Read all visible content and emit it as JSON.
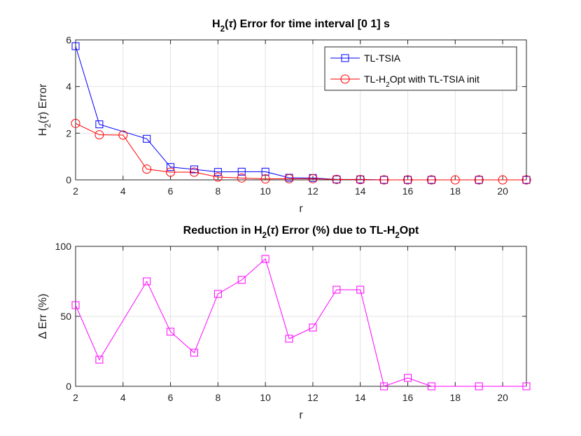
{
  "chart_data": [
    {
      "type": "line",
      "title": "H2(τ) Error for time interval [0 1] s",
      "xlabel": "r",
      "ylabel": "H2(τ) Error",
      "xlim": [
        2,
        21
      ],
      "ylim": [
        0,
        6
      ],
      "xticks": [
        2,
        4,
        6,
        8,
        10,
        12,
        14,
        16,
        18,
        20
      ],
      "yticks": [
        0,
        2,
        4,
        6
      ],
      "grid": true,
      "legend_position": "top-right",
      "series": [
        {
          "name": "TL-TSIA",
          "color": "#0000ff",
          "marker": "square",
          "x": [
            2,
            3,
            5,
            6,
            7,
            8,
            9,
            10,
            11,
            12,
            13,
            14,
            15,
            16,
            17,
            19,
            21
          ],
          "y": [
            5.73,
            2.38,
            1.76,
            0.55,
            0.45,
            0.34,
            0.35,
            0.35,
            0.09,
            0.08,
            0.02,
            0.02,
            0.0,
            0.0,
            0.0,
            0.0,
            0.0
          ]
        },
        {
          "name": "TL-H2Opt with TL-TSIA init",
          "color": "#ff0000",
          "marker": "circle",
          "x": [
            2,
            3,
            4,
            5,
            6,
            7,
            8,
            9,
            10,
            11,
            12,
            13,
            14,
            15,
            16,
            17,
            18,
            19,
            20,
            21
          ],
          "y": [
            2.42,
            1.93,
            1.92,
            0.46,
            0.33,
            0.33,
            0.12,
            0.08,
            0.04,
            0.05,
            0.05,
            0.02,
            0.01,
            0.0,
            0.0,
            0.0,
            0.0,
            0.0,
            0.0,
            0.0
          ]
        }
      ]
    },
    {
      "type": "line",
      "title": "Reduction in H2(τ) Error (%) due to TL-H2Opt",
      "xlabel": "r",
      "ylabel": "Δ Err (%)",
      "xlim": [
        2,
        21
      ],
      "ylim": [
        0,
        100
      ],
      "xticks": [
        2,
        4,
        6,
        8,
        10,
        12,
        14,
        16,
        18,
        20
      ],
      "yticks": [
        0,
        50,
        100
      ],
      "grid": true,
      "series": [
        {
          "name": "Δ Err",
          "color": "#ff00ff",
          "marker": "square",
          "x": [
            2,
            3,
            5,
            6,
            7,
            8,
            9,
            10,
            11,
            12,
            13,
            14,
            15,
            16,
            17,
            19,
            21
          ],
          "y": [
            58,
            19,
            75,
            39,
            24,
            66,
            76,
            91,
            34,
            42,
            69,
            69,
            0,
            6,
            0,
            0,
            0
          ]
        }
      ]
    }
  ]
}
